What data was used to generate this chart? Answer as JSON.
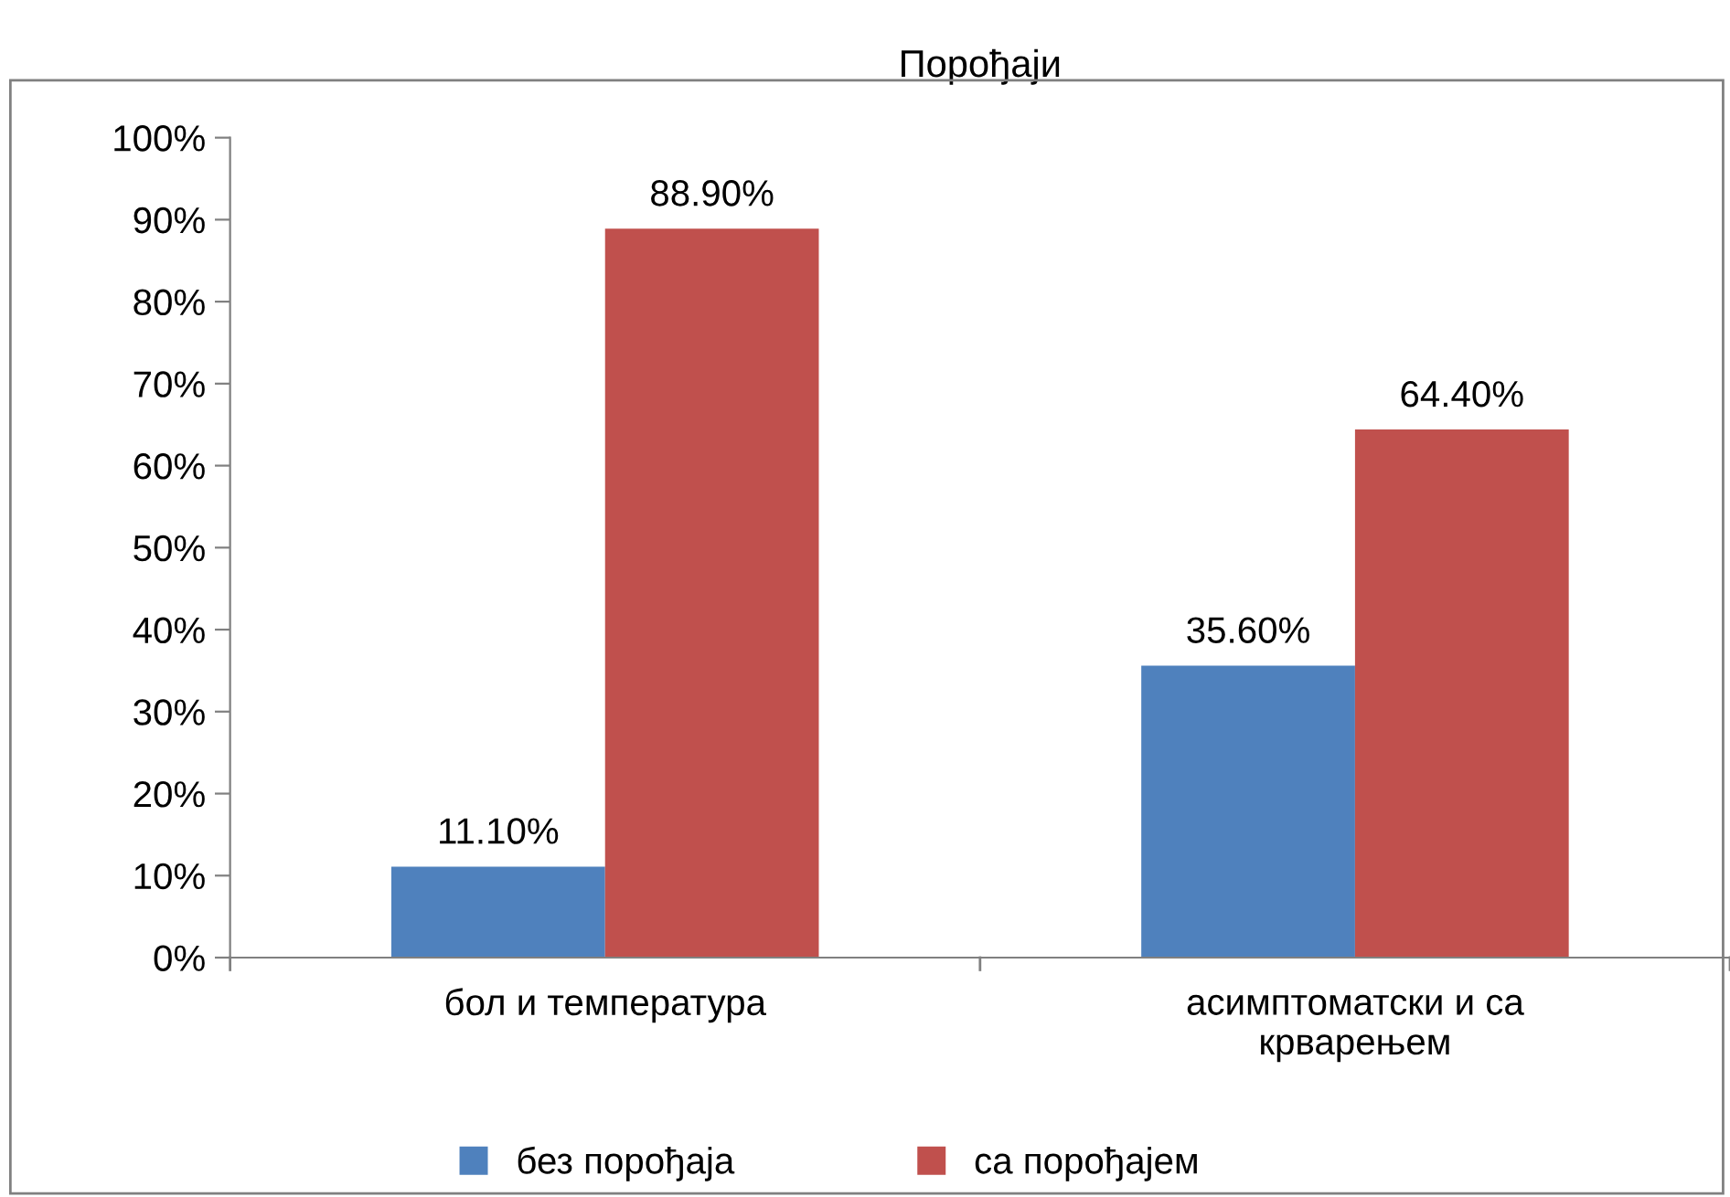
{
  "chart_data": {
    "type": "bar",
    "title": "Порођаји",
    "categories": [
      "бол и температура",
      "асимптоматски и са\nкрварењем"
    ],
    "series": [
      {
        "name": "без порођаја",
        "color": "#4f81bd",
        "values": [
          11.1,
          35.6
        ],
        "value_labels": [
          "11.10%",
          "35.60%"
        ]
      },
      {
        "name": "са порођајем",
        "color": "#c0504d",
        "values": [
          88.9,
          64.4
        ],
        "value_labels": [
          "88.90%",
          "64.40%"
        ]
      }
    ],
    "ylim": [
      0,
      100
    ],
    "yticks": [
      {
        "value": 0,
        "label": "0%"
      },
      {
        "value": 10,
        "label": "10%"
      },
      {
        "value": 20,
        "label": "20%"
      },
      {
        "value": 30,
        "label": "30%"
      },
      {
        "value": 40,
        "label": "40%"
      },
      {
        "value": 50,
        "label": "50%"
      },
      {
        "value": 60,
        "label": "60%"
      },
      {
        "value": 70,
        "label": "70%"
      },
      {
        "value": 80,
        "label": "80%"
      },
      {
        "value": 90,
        "label": "90%"
      },
      {
        "value": 100,
        "label": "100%"
      }
    ],
    "grid": false,
    "legend": "bottom"
  }
}
